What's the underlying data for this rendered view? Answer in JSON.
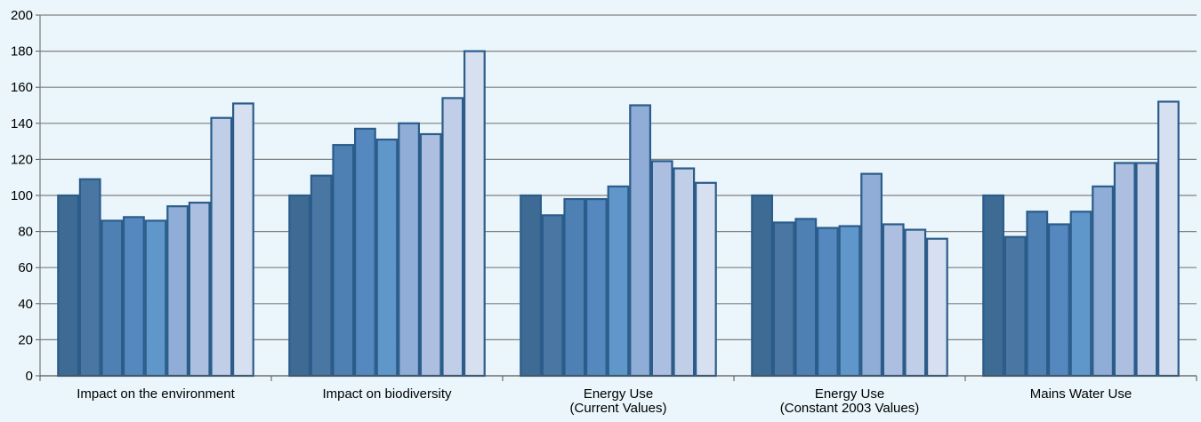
{
  "chart_data": {
    "type": "bar",
    "title": "",
    "xlabel": "",
    "ylabel": "",
    "ylim": [
      0,
      200
    ],
    "yticks": [
      0,
      20,
      40,
      60,
      80,
      100,
      120,
      140,
      160,
      180,
      200
    ],
    "grid": true,
    "legend": "none",
    "categories": [
      [
        "Impact on the environment"
      ],
      [
        "Impact on biodiversity"
      ],
      [
        "Energy Use",
        "(Current Values)"
      ],
      [
        "Energy Use",
        "(Constant 2003 Values)"
      ],
      [
        "Mains Water Use"
      ]
    ],
    "series": [
      {
        "color": "#3e6b94",
        "values": [
          100,
          100,
          100,
          100,
          100
        ]
      },
      {
        "color": "#4a76a3",
        "values": [
          109,
          111,
          89,
          85,
          77
        ]
      },
      {
        "color": "#4f80b4",
        "values": [
          86,
          128,
          98,
          87,
          91
        ]
      },
      {
        "color": "#5588bf",
        "values": [
          88,
          137,
          98,
          82,
          84
        ]
      },
      {
        "color": "#6097cb",
        "values": [
          86,
          131,
          105,
          83,
          91
        ]
      },
      {
        "color": "#8fadd6",
        "values": [
          94,
          140,
          150,
          112,
          105
        ]
      },
      {
        "color": "#adbfe1",
        "values": [
          96,
          134,
          119,
          84,
          118
        ]
      },
      {
        "color": "#c1cee8",
        "values": [
          143,
          154,
          115,
          81,
          118
        ]
      },
      {
        "color": "#d7e0f0",
        "values": [
          151,
          180,
          107,
          76,
          152
        ]
      }
    ]
  }
}
